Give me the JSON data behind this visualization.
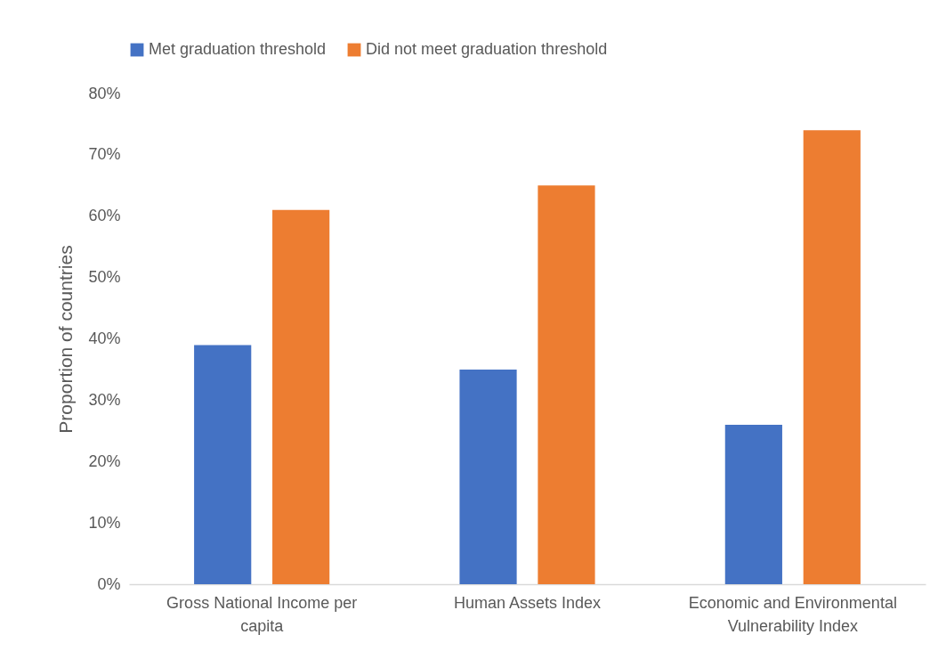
{
  "chart_data": {
    "type": "bar",
    "ylabel": "Proportion of countries",
    "categories": [
      "Gross National Income per capita",
      "Human Assets Index",
      "Economic and Environmental Vulnerability Index"
    ],
    "series": [
      {
        "name": "Met graduation threshold",
        "color": "#4472c4",
        "values": [
          39,
          35,
          26
        ]
      },
      {
        "name": "Did not meet graduation threshold",
        "color": "#ed7d31",
        "values": [
          61,
          65,
          74
        ]
      }
    ],
    "ylim": [
      0,
      80
    ],
    "yticks": [
      {
        "value": 0,
        "label": "0%"
      },
      {
        "value": 10,
        "label": "10%"
      },
      {
        "value": 20,
        "label": "20%"
      },
      {
        "value": 30,
        "label": "30%"
      },
      {
        "value": 40,
        "label": "40%"
      },
      {
        "value": 50,
        "label": "50%"
      },
      {
        "value": 60,
        "label": "60%"
      },
      {
        "value": 70,
        "label": "70%"
      },
      {
        "value": 80,
        "label": "80%"
      }
    ],
    "grid": false,
    "legend": "top"
  }
}
